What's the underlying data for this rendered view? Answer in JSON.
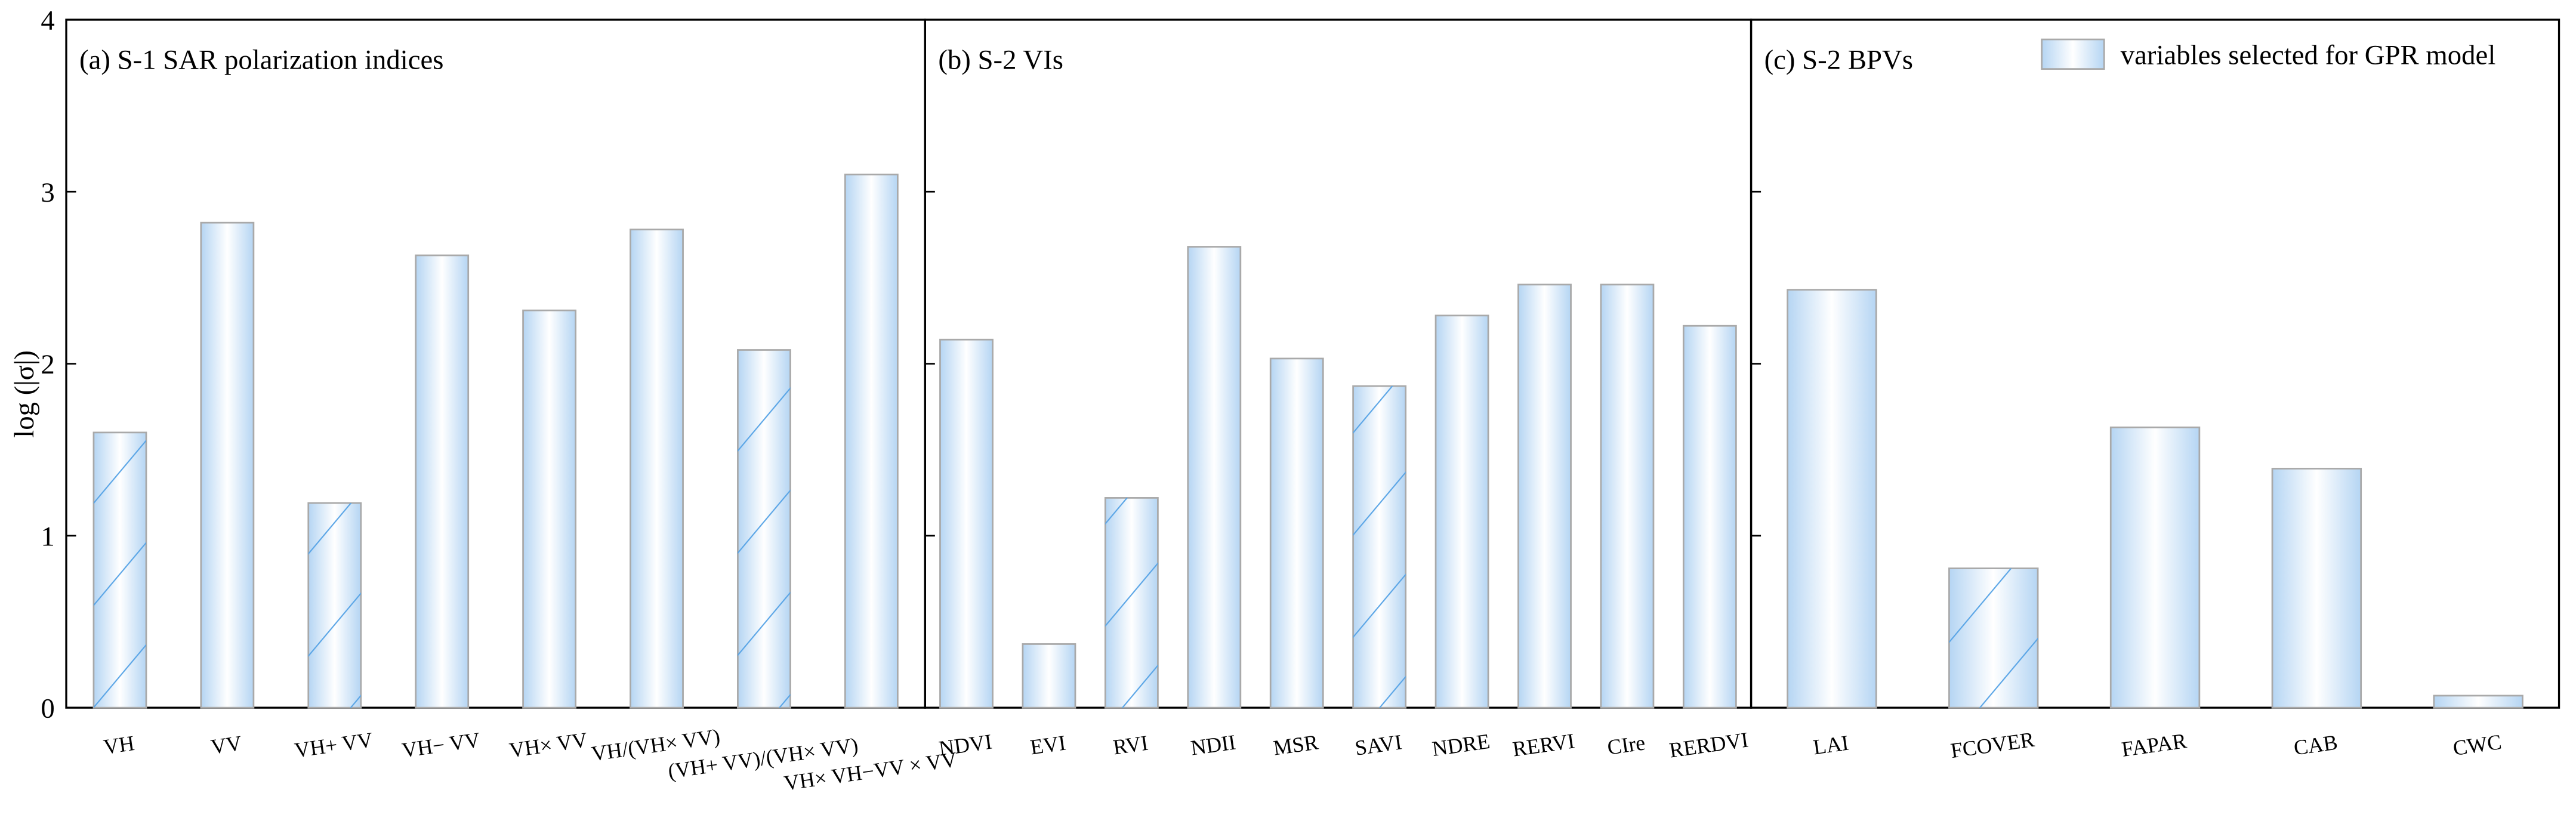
{
  "chart_data": [
    {
      "type": "bar",
      "title": "(a) S-1 SAR polarization indices",
      "ylabel": "log (|σ|)",
      "categories": [
        "VH",
        "VV",
        "VH+ VV",
        "VH− VV",
        "VH× VV",
        "VH/(VH× VV)",
        "(VH+ VV)/(VH× VV)",
        "VH× VH−VV × VV"
      ],
      "values": [
        1.6,
        2.82,
        1.19,
        2.63,
        2.31,
        2.78,
        2.08,
        3.1
      ],
      "selected": [
        false,
        true,
        false,
        true,
        true,
        true,
        false,
        true
      ],
      "ylim": [
        0,
        4
      ],
      "yticks": [
        0,
        1,
        2,
        3,
        4
      ],
      "color": "#b5d5f3"
    },
    {
      "type": "bar",
      "title": "(b) S-2 VIs",
      "categories": [
        "NDVI",
        "EVI",
        "RVI",
        "NDII",
        "MSR",
        "SAVI",
        "NDRE",
        "RERVI",
        "CIre",
        "RERDVI"
      ],
      "values": [
        2.14,
        0.37,
        1.22,
        2.68,
        2.03,
        1.87,
        2.28,
        2.46,
        2.46,
        2.22
      ],
      "selected": [
        true,
        true,
        false,
        true,
        true,
        false,
        true,
        true,
        true,
        true
      ],
      "color": "#b5d5f3"
    },
    {
      "type": "bar",
      "title": "(c) S-2 BPVs",
      "categories": [
        "LAI",
        "FCOVER",
        "FAPAR",
        "CAB",
        "CWC"
      ],
      "values": [
        2.43,
        0.81,
        1.63,
        1.39,
        0.07
      ],
      "selected": [
        true,
        false,
        true,
        true,
        true
      ],
      "color": "#b5d5f3",
      "legend": {
        "label": "variables selected for GPR model",
        "corner": "upper right"
      }
    }
  ]
}
